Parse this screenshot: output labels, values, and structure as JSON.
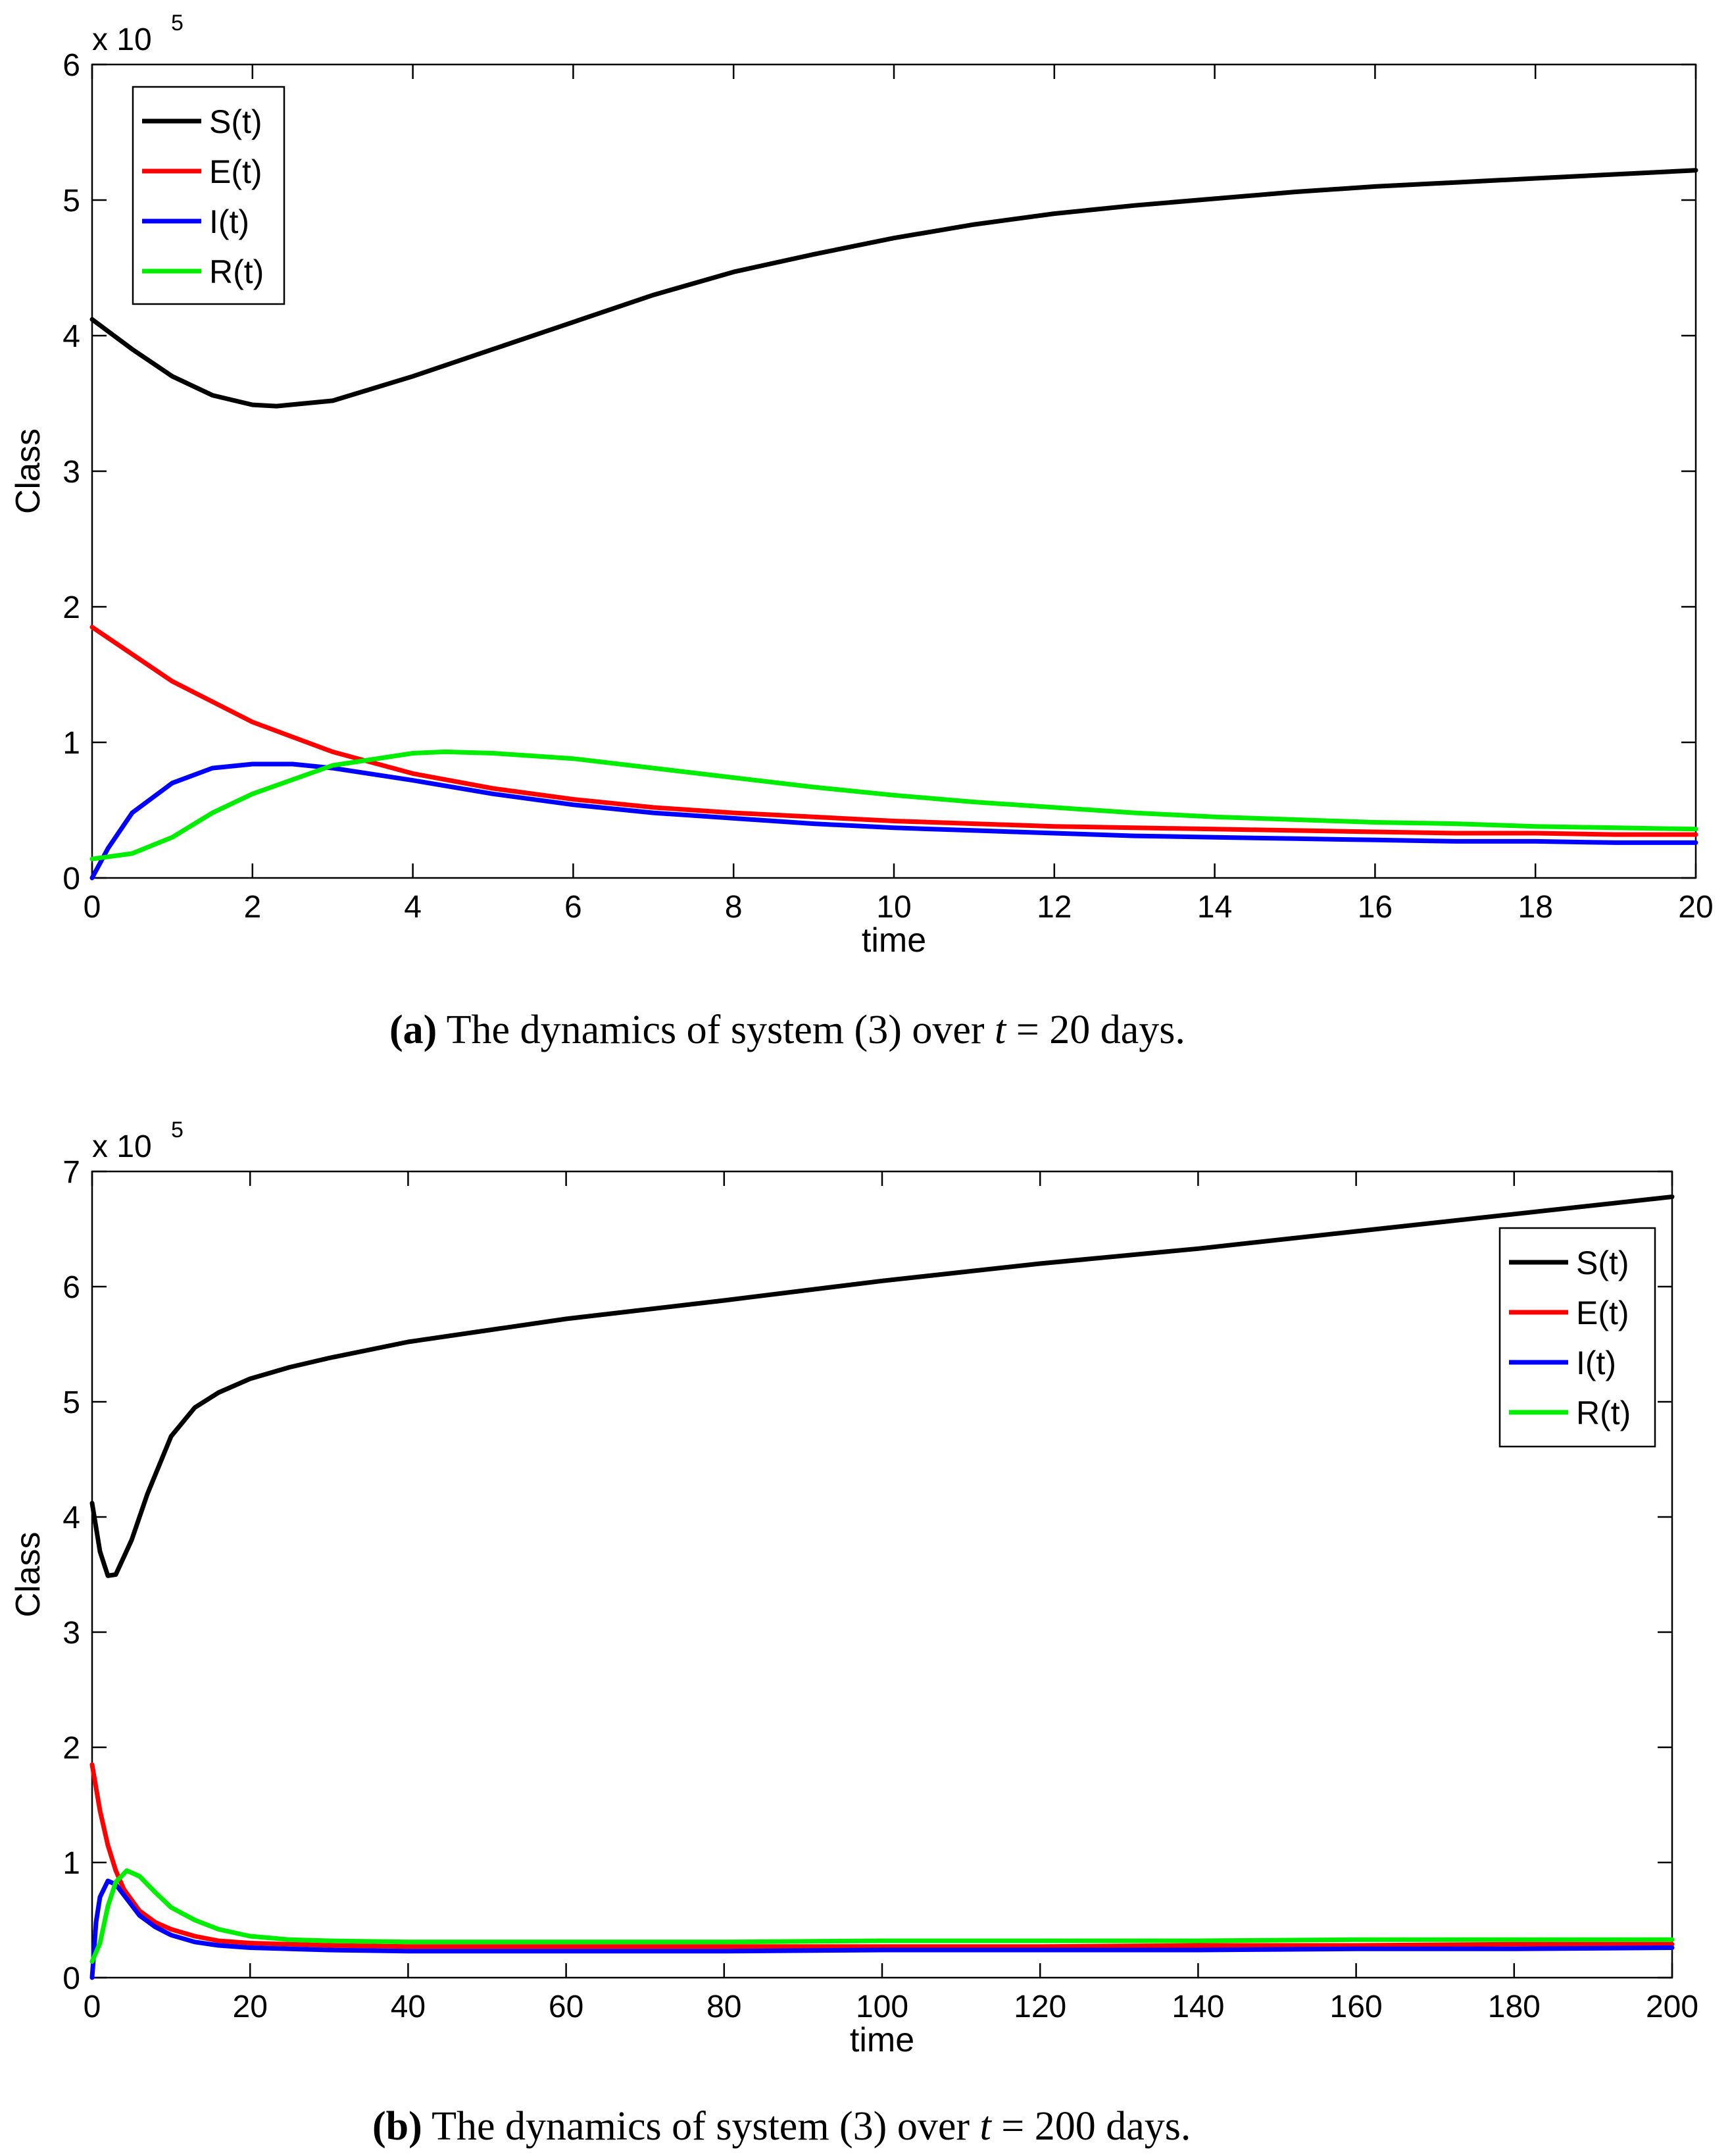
{
  "chart_data": [
    {
      "type": "line",
      "id": "a",
      "xlabel": "time",
      "ylabel": "Class",
      "exponent_label": "x 10",
      "exponent_power": "5",
      "xlim": [
        0,
        20
      ],
      "ylim": [
        0,
        6
      ],
      "xticks": [
        0,
        2,
        4,
        6,
        8,
        10,
        12,
        14,
        16,
        18,
        20
      ],
      "yticks": [
        0,
        1,
        2,
        3,
        4,
        5,
        6
      ],
      "legend_position": "top-left",
      "series": [
        {
          "name": "S(t)",
          "color": "#000000",
          "x": [
            0,
            0.5,
            1,
            1.5,
            2,
            2.3,
            3,
            4,
            5,
            6,
            7,
            8,
            9,
            10,
            11,
            12,
            13,
            14,
            15,
            16,
            17,
            18,
            19,
            20
          ],
          "y": [
            4.12,
            3.9,
            3.7,
            3.56,
            3.49,
            3.48,
            3.52,
            3.7,
            3.9,
            4.1,
            4.3,
            4.47,
            4.6,
            4.72,
            4.82,
            4.9,
            4.96,
            5.01,
            5.06,
            5.1,
            5.13,
            5.16,
            5.19,
            5.22
          ]
        },
        {
          "name": "E(t)",
          "color": "#ff0000",
          "x": [
            0,
            1,
            2,
            3,
            4,
            5,
            6,
            7,
            8,
            9,
            10,
            11,
            12,
            13,
            14,
            15,
            16,
            17,
            18,
            19,
            20
          ],
          "y": [
            1.85,
            1.45,
            1.15,
            0.93,
            0.77,
            0.66,
            0.58,
            0.52,
            0.48,
            0.45,
            0.42,
            0.4,
            0.38,
            0.37,
            0.36,
            0.35,
            0.34,
            0.33,
            0.33,
            0.32,
            0.32
          ]
        },
        {
          "name": "I(t)",
          "color": "#0000ff",
          "x": [
            0,
            0.2,
            0.5,
            1,
            1.5,
            2,
            2.5,
            3,
            4,
            5,
            6,
            7,
            8,
            9,
            10,
            11,
            12,
            13,
            14,
            15,
            16,
            17,
            18,
            19,
            20
          ],
          "y": [
            0,
            0.22,
            0.48,
            0.7,
            0.81,
            0.84,
            0.84,
            0.81,
            0.72,
            0.62,
            0.54,
            0.48,
            0.44,
            0.4,
            0.37,
            0.35,
            0.33,
            0.31,
            0.3,
            0.29,
            0.28,
            0.27,
            0.27,
            0.26,
            0.26
          ]
        },
        {
          "name": "R(t)",
          "color": "#00ee00",
          "x": [
            0,
            0.5,
            1,
            1.5,
            2,
            3,
            4,
            4.4,
            5,
            6,
            7,
            8,
            9,
            10,
            11,
            12,
            13,
            14,
            15,
            16,
            17,
            18,
            19,
            20
          ],
          "y": [
            0.14,
            0.18,
            0.3,
            0.48,
            0.62,
            0.83,
            0.92,
            0.93,
            0.92,
            0.88,
            0.81,
            0.74,
            0.67,
            0.61,
            0.56,
            0.52,
            0.48,
            0.45,
            0.43,
            0.41,
            0.4,
            0.38,
            0.37,
            0.36
          ]
        }
      ]
    },
    {
      "type": "line",
      "id": "b",
      "xlabel": "time",
      "ylabel": "Class",
      "exponent_label": "x 10",
      "exponent_power": "5",
      "xlim": [
        0,
        200
      ],
      "ylim": [
        0,
        7
      ],
      "xticks": [
        0,
        20,
        40,
        60,
        80,
        100,
        120,
        140,
        160,
        180,
        200
      ],
      "yticks": [
        0,
        1,
        2,
        3,
        4,
        5,
        6,
        7
      ],
      "legend_position": "top-right",
      "series": [
        {
          "name": "S(t)",
          "color": "#000000",
          "x": [
            0,
            1,
            2,
            3,
            5,
            7,
            10,
            13,
            16,
            20,
            25,
            30,
            40,
            50,
            60,
            80,
            100,
            120,
            140,
            160,
            180,
            200
          ],
          "y": [
            4.12,
            3.7,
            3.49,
            3.5,
            3.8,
            4.2,
            4.7,
            4.95,
            5.08,
            5.2,
            5.3,
            5.38,
            5.52,
            5.62,
            5.72,
            5.88,
            6.05,
            6.2,
            6.33,
            6.48,
            6.63,
            6.78
          ]
        },
        {
          "name": "E(t)",
          "color": "#ff0000",
          "x": [
            0,
            1,
            2,
            3,
            4,
            6,
            8,
            10,
            13,
            16,
            20,
            25,
            30,
            40,
            60,
            80,
            100,
            120,
            140,
            160,
            180,
            200
          ],
          "y": [
            1.85,
            1.45,
            1.15,
            0.93,
            0.77,
            0.58,
            0.48,
            0.42,
            0.36,
            0.32,
            0.3,
            0.29,
            0.28,
            0.27,
            0.27,
            0.27,
            0.27,
            0.27,
            0.28,
            0.28,
            0.29,
            0.29
          ]
        },
        {
          "name": "I(t)",
          "color": "#0000ff",
          "x": [
            0,
            0.5,
            1,
            2,
            3,
            4,
            6,
            8,
            10,
            13,
            16,
            20,
            25,
            30,
            40,
            60,
            80,
            100,
            120,
            140,
            160,
            180,
            200
          ],
          "y": [
            0,
            0.48,
            0.7,
            0.84,
            0.81,
            0.72,
            0.54,
            0.44,
            0.37,
            0.31,
            0.28,
            0.26,
            0.25,
            0.24,
            0.23,
            0.23,
            0.23,
            0.24,
            0.24,
            0.24,
            0.25,
            0.25,
            0.26
          ]
        },
        {
          "name": "R(t)",
          "color": "#00ee00",
          "x": [
            0,
            1,
            2,
            3,
            4.4,
            6,
            8,
            10,
            13,
            16,
            20,
            25,
            30,
            40,
            60,
            80,
            100,
            120,
            140,
            160,
            180,
            200
          ],
          "y": [
            0.14,
            0.3,
            0.62,
            0.83,
            0.93,
            0.88,
            0.74,
            0.61,
            0.5,
            0.42,
            0.36,
            0.33,
            0.32,
            0.31,
            0.31,
            0.31,
            0.32,
            0.32,
            0.32,
            0.33,
            0.33,
            0.33
          ]
        }
      ]
    }
  ],
  "captions": {
    "a": {
      "tag": "(a)",
      "text_before": " The dynamics of system (3) over ",
      "var": "t",
      "text_after": " = 20 days."
    },
    "b": {
      "tag": "(b)",
      "text_before": " The dynamics of system (3) over ",
      "var": "t",
      "text_after": " = 200 days."
    }
  }
}
